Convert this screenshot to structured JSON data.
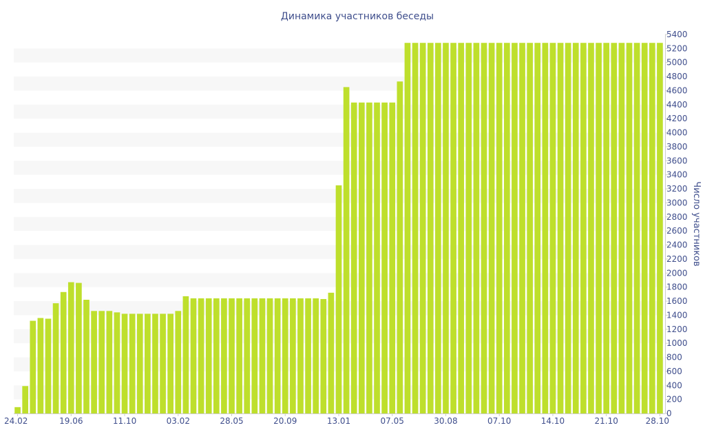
{
  "chart_data": {
    "type": "bar",
    "title": "Динамика участников беседы",
    "xlabel": "",
    "ylabel": "Число участников",
    "ylim": [
      0,
      5400
    ],
    "y_axis_position": "right",
    "y_ticks": [
      0,
      200,
      400,
      600,
      800,
      1000,
      1200,
      1400,
      1600,
      1800,
      2000,
      2200,
      2400,
      2600,
      2800,
      3000,
      3200,
      3400,
      3600,
      3800,
      4000,
      4200,
      4400,
      4600,
      4800,
      5000,
      5200,
      5400
    ],
    "x_tick_labels": [
      {
        "label": "24.02",
        "index": 0
      },
      {
        "label": "19.06",
        "index": 7
      },
      {
        "label": "11.10",
        "index": 14
      },
      {
        "label": "03.02",
        "index": 21
      },
      {
        "label": "28.05",
        "index": 28
      },
      {
        "label": "20.09",
        "index": 35
      },
      {
        "label": "13.01",
        "index": 42
      },
      {
        "label": "07.05",
        "index": 49
      },
      {
        "label": "30.08",
        "index": 56
      },
      {
        "label": "07.10",
        "index": 63
      },
      {
        "label": "14.10",
        "index": 70
      },
      {
        "label": "21.10",
        "index": 77
      },
      {
        "label": "28.10",
        "index": 84
      }
    ],
    "values": [
      90,
      390,
      1320,
      1360,
      1350,
      1570,
      1730,
      1870,
      1860,
      1620,
      1460,
      1460,
      1460,
      1440,
      1420,
      1420,
      1420,
      1420,
      1420,
      1420,
      1420,
      1460,
      1670,
      1640,
      1640,
      1640,
      1640,
      1640,
      1640,
      1640,
      1640,
      1640,
      1640,
      1640,
      1640,
      1640,
      1640,
      1640,
      1640,
      1640,
      1630,
      1720,
      3250,
      4650,
      4430,
      4430,
      4430,
      4430,
      4430,
      4430,
      4730,
      5280,
      5280,
      5280,
      5280,
      5280,
      5280,
      5280,
      5280,
      5280,
      5280,
      5280,
      5280,
      5280,
      5280,
      5280,
      5280,
      5280,
      5280,
      5280,
      5280,
      5280,
      5280,
      5280,
      5280,
      5280,
      5280,
      5280,
      5280,
      5280,
      5280,
      5280,
      5280,
      5280,
      5280
    ],
    "colors": {
      "bar": "#bedf2c",
      "band": "#f7f7f7",
      "text": "#3f4e8c",
      "axis": "#cccccc"
    },
    "grid": "alternating horizontal bands"
  }
}
